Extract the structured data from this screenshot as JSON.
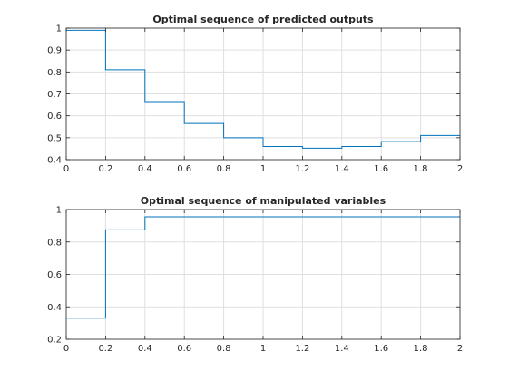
{
  "chart_data": [
    {
      "type": "line",
      "step": true,
      "title": "Optimal sequence of predicted outputs",
      "xlabel": "",
      "ylabel": "",
      "xlim": [
        0,
        2
      ],
      "ylim": [
        0.4,
        1
      ],
      "xticks": [
        0,
        0.2,
        0.4,
        0.6,
        0.8,
        1,
        1.2,
        1.4,
        1.6,
        1.8,
        2
      ],
      "xtick_labels": [
        "0",
        "0.2",
        "0.4",
        "0.6",
        "0.8",
        "1",
        "1.2",
        "1.4",
        "1.6",
        "1.8",
        "2"
      ],
      "yticks": [
        0.4,
        0.5,
        0.6,
        0.7,
        0.8,
        0.9,
        1
      ],
      "ytick_labels": [
        "0.4",
        "0.5",
        "0.6",
        "0.7",
        "0.8",
        "0.9",
        "1"
      ],
      "grid": true,
      "color": "#0072bd",
      "series": [
        {
          "x": [
            0,
            0.2,
            0.4,
            0.6,
            0.8,
            1.0,
            1.2,
            1.4,
            1.6,
            1.8,
            2.0
          ],
          "y": [
            0.99,
            0.81,
            0.665,
            0.565,
            0.5,
            0.46,
            0.452,
            0.46,
            0.482,
            0.51,
            0.51
          ]
        }
      ]
    },
    {
      "type": "line",
      "step": true,
      "title": "Optimal sequence of manipulated variables",
      "xlabel": "",
      "ylabel": "",
      "xlim": [
        0,
        2
      ],
      "ylim": [
        0.2,
        1
      ],
      "xticks": [
        0,
        0.2,
        0.4,
        0.6,
        0.8,
        1,
        1.2,
        1.4,
        1.6,
        1.8,
        2
      ],
      "xtick_labels": [
        "0",
        "0.2",
        "0.4",
        "0.6",
        "0.8",
        "1",
        "1.2",
        "1.4",
        "1.6",
        "1.8",
        "2"
      ],
      "yticks": [
        0.2,
        0.4,
        0.6,
        0.8,
        1
      ],
      "ytick_labels": [
        "0.2",
        "0.4",
        "0.6",
        "0.8",
        "1"
      ],
      "grid": true,
      "color": "#0072bd",
      "series": [
        {
          "x": [
            0,
            0.2,
            0.4,
            0.6,
            0.8,
            1.0,
            1.2,
            1.4,
            1.6,
            1.8,
            2.0
          ],
          "y": [
            0.33,
            0.875,
            0.955,
            0.955,
            0.955,
            0.955,
            0.955,
            0.955,
            0.955,
            0.955,
            0.955
          ]
        }
      ]
    }
  ]
}
